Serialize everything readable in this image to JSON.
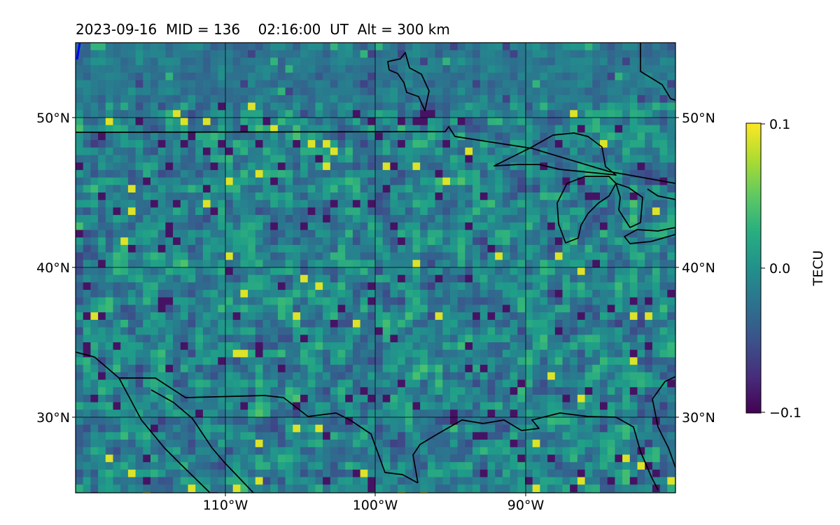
{
  "title": "2023-09-16  MID = 136    02:16:00  UT  Alt = 300 km",
  "map": {
    "lon_range": [
      -120,
      -80
    ],
    "lat_range": [
      25,
      55
    ],
    "parallels": [
      30,
      40,
      50
    ],
    "meridians": [
      -110,
      -100,
      -90
    ],
    "lat_labels": [
      "30°N",
      "40°N",
      "50°N"
    ],
    "lon_labels": [
      "110°W",
      "100°W",
      "90°W"
    ],
    "gridlines": true
  },
  "colorbar": {
    "label": "TECU",
    "vmin": -0.1,
    "vmax": 0.1,
    "colormap": "viridis",
    "tick_labels": [
      "0.1",
      "0.0",
      "−0.1"
    ]
  },
  "colors": {
    "viridis_low": "#440154",
    "viridis_mid": "#21918c",
    "viridis_high": "#fde725",
    "coastline": "#000000",
    "track_marker": "#0000ff"
  }
}
